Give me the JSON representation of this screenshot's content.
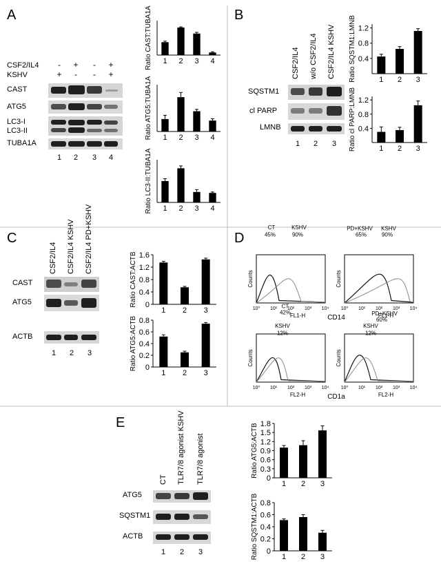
{
  "panels": {
    "A": {
      "letter": "A",
      "conditions": [
        {
          "label": "CSF2/IL4",
          "values": [
            "-",
            "+",
            "-",
            "+"
          ]
        },
        {
          "label": "KSHV",
          "values": [
            "+",
            "-",
            "-",
            "+"
          ]
        }
      ],
      "bands": [
        "CAST",
        "ATG5",
        "LC3-I",
        "LC3-II",
        "TUBA1A"
      ],
      "lanes": [
        "1",
        "2",
        "3",
        "4"
      ]
    },
    "B": {
      "letter": "B",
      "columns": [
        "CSF2/IL4",
        "w/o CSF2/IL4",
        "CSF2/IL4 KSHV"
      ],
      "bands": [
        "SQSTM1",
        "cl PARP",
        "LMNB"
      ],
      "lanes": [
        "1",
        "2",
        "3"
      ]
    },
    "C": {
      "letter": "C",
      "columns": [
        "CSF2/IL4",
        "CSF2/IL4 KSHV",
        "CSF2/IL4 PD+KSHV"
      ],
      "bands": [
        "CAST",
        "ATG5",
        "ACTB"
      ],
      "lanes": [
        "1",
        "2",
        "3"
      ]
    },
    "D": {
      "letter": "D",
      "hist_axis_y": "Counts",
      "hist_tick_labels": [
        "10⁰",
        "10¹",
        "10²",
        "10³",
        "10⁴"
      ],
      "histograms": [
        {
          "labels": [
            "45%",
            "CT",
            "90%",
            "KSHV"
          ],
          "xlabel": "FL1-H",
          "marker": ""
        },
        {
          "labels": [
            "65%",
            "PD+KSHV",
            "90%",
            "KSHV"
          ],
          "xlabel": "FL1-H",
          "marker": "CD14"
        },
        {
          "labels": [
            "12%",
            "KSHV",
            "42%",
            "CT"
          ],
          "xlabel": "FL2-H",
          "marker": ""
        },
        {
          "labels": [
            "12%",
            "KSHV",
            "60%",
            "PD+KSHV"
          ],
          "xlabel": "FL2-H",
          "marker": "CD1a"
        }
      ]
    },
    "E": {
      "letter": "E",
      "columns": [
        "CT",
        "TLR7/8 agonist KSHV",
        "TLR7/8 agonist"
      ],
      "bands": [
        "ATG5",
        "SQSTM1",
        "ACTB"
      ],
      "lanes": [
        "1",
        "2",
        "3"
      ]
    }
  },
  "chart_data": [
    {
      "type": "bar",
      "panel": "A",
      "categories": [
        "1",
        "2",
        "3",
        "4"
      ],
      "values": [
        0.75,
        1.6,
        1.25,
        0.15
      ],
      "errors": [
        0.06,
        0.04,
        0.07,
        0.04
      ],
      "ylabel": "Ratio CAST:TUBA1A",
      "ylim": [
        0,
        2
      ],
      "yticks": []
    },
    {
      "type": "bar",
      "panel": "A",
      "categories": [
        "1",
        "2",
        "3",
        "4"
      ],
      "values": [
        0.4,
        1.1,
        0.65,
        0.35
      ],
      "errors": [
        0.12,
        0.15,
        0.06,
        0.06
      ],
      "ylabel": "Ratio ATG5:TUBA1A",
      "ylim": [
        0,
        1.5
      ],
      "yticks": []
    },
    {
      "type": "bar",
      "panel": "A",
      "categories": [
        "1",
        "2",
        "3",
        "4"
      ],
      "values": [
        0.45,
        0.72,
        0.22,
        0.2
      ],
      "errors": [
        0.05,
        0.05,
        0.05,
        0.02
      ],
      "ylabel": "Ratio LC3-II:TUBA1A",
      "ylim": [
        0,
        0.9
      ],
      "yticks": []
    },
    {
      "type": "bar",
      "panel": "B",
      "categories": [
        "1",
        "2",
        "3"
      ],
      "values": [
        0.45,
        0.65,
        1.12
      ],
      "errors": [
        0.06,
        0.06,
        0.06
      ],
      "ylabel": "Ratio SQSTM1:LMNB",
      "ylim": [
        0,
        1.3
      ],
      "yticks": [
        "0.4",
        "0.8",
        "1.2"
      ]
    },
    {
      "type": "bar",
      "panel": "B",
      "categories": [
        "1",
        "2",
        "3"
      ],
      "values": [
        0.3,
        0.35,
        1.05
      ],
      "errors": [
        0.14,
        0.08,
        0.12
      ],
      "ylabel": "Ratio cl PARP:LMNB",
      "ylim": [
        0,
        1.3
      ],
      "yticks": [
        "0.4",
        "0.8",
        "1.2"
      ]
    },
    {
      "type": "bar",
      "panel": "C",
      "categories": [
        "1",
        "2",
        "3"
      ],
      "values": [
        1.35,
        0.55,
        1.45
      ],
      "errors": [
        0.04,
        0.03,
        0.04
      ],
      "ylabel": "Ratio CAST:ACTB",
      "ylim": [
        0,
        1.6
      ],
      "yticks": [
        "0",
        "0.4",
        "0.8",
        "1.2",
        "1.6"
      ]
    },
    {
      "type": "bar",
      "panel": "C",
      "categories": [
        "1",
        "2",
        "3"
      ],
      "values": [
        0.52,
        0.25,
        0.74
      ],
      "errors": [
        0.03,
        0.02,
        0.02
      ],
      "ylabel": "Ratio ATG5:ACTB",
      "ylim": [
        0,
        0.8
      ],
      "yticks": [
        "0",
        "0.2",
        "0.4",
        "0.6",
        "0.8"
      ]
    },
    {
      "type": "bar",
      "panel": "E",
      "categories": [
        "1",
        "2",
        "3"
      ],
      "values": [
        1.0,
        1.08,
        1.57
      ],
      "errors": [
        0.07,
        0.15,
        0.15
      ],
      "ylabel": "Ratio ATG5:ACTB",
      "ylim": [
        0,
        1.8
      ],
      "yticks": [
        "0",
        "0.3",
        "0.6",
        "0.9",
        "1.2",
        "1.5",
        "1.8"
      ]
    },
    {
      "type": "bar",
      "panel": "E",
      "categories": [
        "1",
        "2",
        "3"
      ],
      "values": [
        0.51,
        0.56,
        0.3
      ],
      "errors": [
        0.02,
        0.04,
        0.04
      ],
      "ylabel": "Ratio SQSTM1:ACTB",
      "ylim": [
        0,
        0.8
      ],
      "yticks": [
        "0",
        "0.2",
        "0.4",
        "0.6",
        "0.8"
      ]
    }
  ]
}
